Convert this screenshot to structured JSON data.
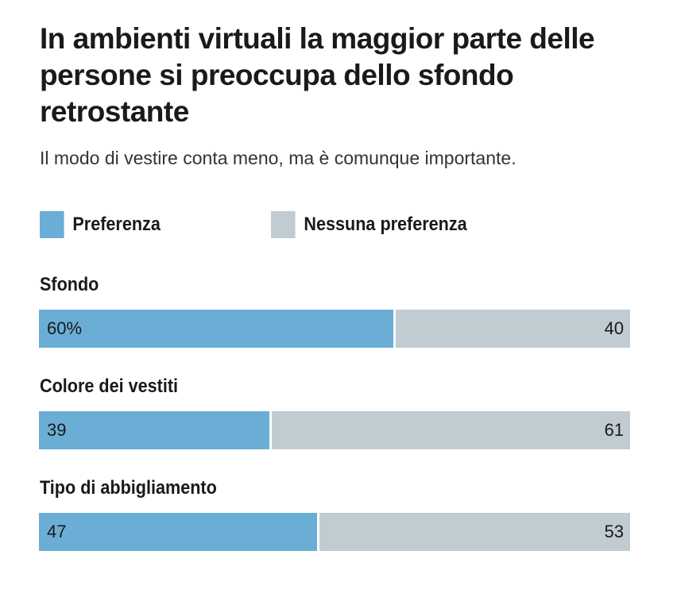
{
  "chart_data": {
    "type": "bar",
    "stacked": true,
    "orientation": "horizontal",
    "title": "In ambienti virtuali la maggior parte delle persone si preoccupa dello sfondo retrostante",
    "subtitle": "Il modo di vestire conta meno, ma è comunque importante.",
    "legend_position": "top-left",
    "categories": [
      "Sfondo",
      "Colore dei vestiti",
      "Tipo di abbigliamento"
    ],
    "series": [
      {
        "name": "Preferenza",
        "color": "#6aaed6",
        "values": [
          60,
          39,
          47
        ],
        "labels": [
          "60%",
          "39",
          "47"
        ]
      },
      {
        "name": "Nessuna preferenza",
        "color": "#c0cbd2",
        "values": [
          40,
          61,
          53
        ],
        "labels": [
          "40",
          "61",
          "53"
        ]
      }
    ],
    "xlim": [
      0,
      100
    ]
  }
}
